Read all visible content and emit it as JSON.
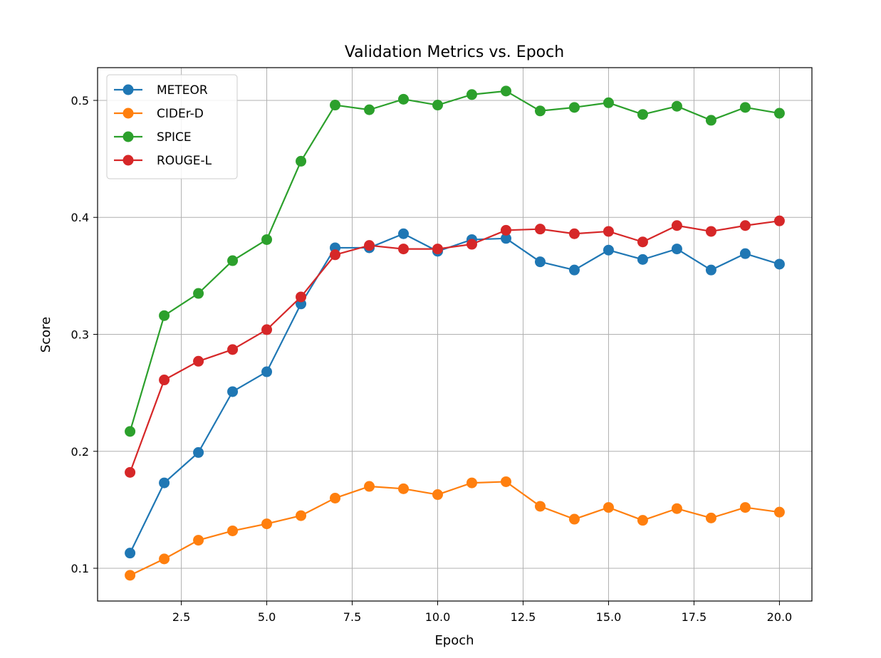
{
  "chart_data": {
    "type": "line",
    "title": "Validation Metrics vs. Epoch",
    "xlabel": "Epoch",
    "ylabel": "Score",
    "xlim": [
      0.05,
      20.95
    ],
    "ylim": [
      0.072,
      0.528
    ],
    "xticks": [
      2.5,
      5.0,
      7.5,
      10.0,
      12.5,
      15.0,
      17.5,
      20.0
    ],
    "xtick_labels": [
      "2.5",
      "5.0",
      "7.5",
      "10.0",
      "12.5",
      "15.0",
      "17.5",
      "20.0"
    ],
    "yticks": [
      0.1,
      0.2,
      0.3,
      0.4,
      0.5
    ],
    "ytick_labels": [
      "0.1",
      "0.2",
      "0.3",
      "0.4",
      "0.5"
    ],
    "grid": true,
    "legend_position": "top-left",
    "x": [
      1,
      2,
      3,
      4,
      5,
      6,
      7,
      8,
      9,
      10,
      11,
      12,
      13,
      14,
      15,
      16,
      17,
      18,
      19,
      20
    ],
    "series": [
      {
        "name": "METEOR",
        "color": "#1f77b4",
        "values": [
          0.113,
          0.173,
          0.199,
          0.251,
          0.268,
          0.326,
          0.374,
          0.374,
          0.386,
          0.371,
          0.381,
          0.382,
          0.362,
          0.355,
          0.372,
          0.364,
          0.373,
          0.355,
          0.369,
          0.36
        ]
      },
      {
        "name": "CIDEr-D",
        "color": "#ff7f0e",
        "values": [
          0.094,
          0.108,
          0.124,
          0.132,
          0.138,
          0.145,
          0.16,
          0.17,
          0.168,
          0.163,
          0.173,
          0.174,
          0.153,
          0.142,
          0.152,
          0.141,
          0.151,
          0.143,
          0.152,
          0.148
        ]
      },
      {
        "name": "SPICE",
        "color": "#2ca02c",
        "values": [
          0.217,
          0.316,
          0.335,
          0.363,
          0.381,
          0.448,
          0.496,
          0.492,
          0.501,
          0.496,
          0.505,
          0.508,
          0.491,
          0.494,
          0.498,
          0.488,
          0.495,
          0.483,
          0.494,
          0.489
        ]
      },
      {
        "name": "ROUGE-L",
        "color": "#d62728",
        "values": [
          0.182,
          0.261,
          0.277,
          0.287,
          0.304,
          0.332,
          0.368,
          0.376,
          0.373,
          0.373,
          0.377,
          0.389,
          0.39,
          0.386,
          0.388,
          0.379,
          0.393,
          0.388,
          0.393,
          0.397
        ]
      }
    ]
  }
}
